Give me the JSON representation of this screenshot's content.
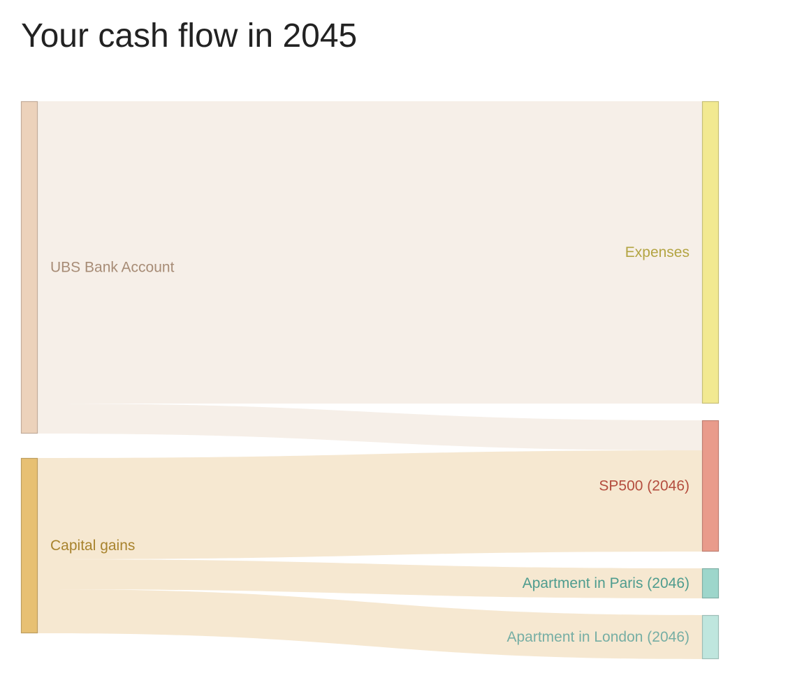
{
  "title": "Your cash flow in 2045",
  "sources": [
    {
      "id": "ubs",
      "label": "UBS Bank Account",
      "color": "#ecd2bb",
      "label_color": "#a78c76"
    },
    {
      "id": "capital",
      "label": "Capital gains",
      "color": "#e7c073",
      "label_color": "#a8832d"
    }
  ],
  "targets": [
    {
      "id": "expenses",
      "label": "Expenses",
      "color": "#f2e991",
      "label_color": "#b3a442"
    },
    {
      "id": "sp500",
      "label": "SP500 (2046)",
      "color": "#e99b8b",
      "label_color": "#b44d3e"
    },
    {
      "id": "paris",
      "label": "Apartment in Paris (2046)",
      "color": "#9dd6cb",
      "label_color": "#4e9c8e"
    },
    {
      "id": "london",
      "label": "Apartment in London (2046)",
      "color": "#bfe6de",
      "label_color": "#76aea4"
    }
  ],
  "flows": [
    {
      "source": "ubs",
      "target": "expenses",
      "value": 433,
      "color": "#f6efe8"
    },
    {
      "source": "ubs",
      "target": "sp500",
      "value": 43,
      "color": "#f6efe8"
    },
    {
      "source": "capital",
      "target": "sp500",
      "value": 145,
      "color": "#f6e8d1"
    },
    {
      "source": "capital",
      "target": "paris",
      "value": 43,
      "color": "#f6e8d1"
    },
    {
      "source": "capital",
      "target": "london",
      "value": 63,
      "color": "#f6e8d1"
    }
  ]
}
